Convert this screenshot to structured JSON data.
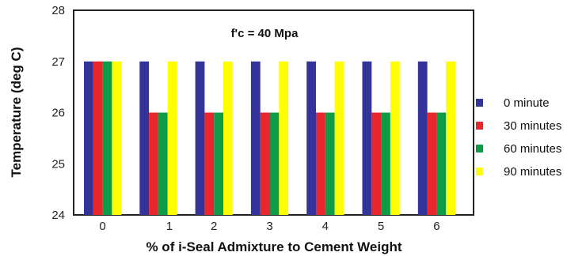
{
  "chart_data": {
    "type": "bar",
    "annotation": "f'c = 40 Mpa",
    "xlabel": "% of i-Seal Admixture to Cement Weight",
    "ylabel": "Temperature (deg C)",
    "categories": [
      "0",
      "1",
      "2",
      "3",
      "4",
      "5",
      "6"
    ],
    "ylim": [
      24,
      28
    ],
    "yticks": [
      24,
      25,
      26,
      27,
      28
    ],
    "series": [
      {
        "name": "0 minute",
        "color": "#333399",
        "values": [
          27,
          27,
          27,
          27,
          27,
          27,
          27
        ]
      },
      {
        "name": "30 minutes",
        "color": "#e8262b",
        "values": [
          27,
          26,
          26,
          26,
          26,
          26,
          26
        ]
      },
      {
        "name": "60 minutes",
        "color": "#0e9b48",
        "values": [
          27,
          26,
          26,
          26,
          26,
          26,
          26
        ]
      },
      {
        "name": "90 minutes",
        "color": "#ffff00",
        "values": [
          27,
          27,
          27,
          27,
          27,
          27,
          27
        ]
      }
    ],
    "grid": false,
    "legend_position": "right"
  }
}
